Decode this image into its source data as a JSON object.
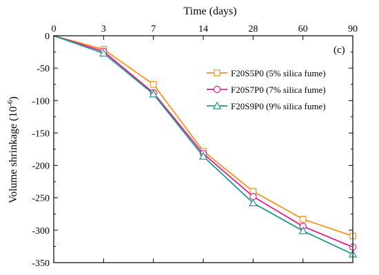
{
  "chart_data": {
    "type": "line",
    "xlabel": "Time (days)",
    "ylabel_main": "Volume shrinkage (10",
    "ylabel_sup": "-6",
    "ylabel_close": ")",
    "panel_label": "(c)",
    "x": [
      "0",
      "3",
      "7",
      "14",
      "28",
      "60",
      "90"
    ],
    "ylim": [
      -350,
      0
    ],
    "yticks": [
      0,
      -50,
      -100,
      -150,
      -200,
      -250,
      -300,
      -350
    ],
    "legend_position": "upper-right",
    "series": [
      {
        "name": "F20S5P0 (5% silica fume)",
        "color": "#f7941d",
        "marker": "square",
        "values": [
          0,
          -21,
          -75,
          -178,
          -240,
          -283,
          -309
        ]
      },
      {
        "name": "F20S7P0 (7% silica fume)",
        "color": "#ec1c8c",
        "marker": "circle",
        "values": [
          0,
          -24,
          -88,
          -182,
          -248,
          -294,
          -326
        ]
      },
      {
        "name": "F20S9P0 (9% silica fume)",
        "color": "#1b9a8f",
        "marker": "triangle",
        "values": [
          0,
          -27,
          -90,
          -186,
          -258,
          -301,
          -337
        ]
      }
    ]
  }
}
